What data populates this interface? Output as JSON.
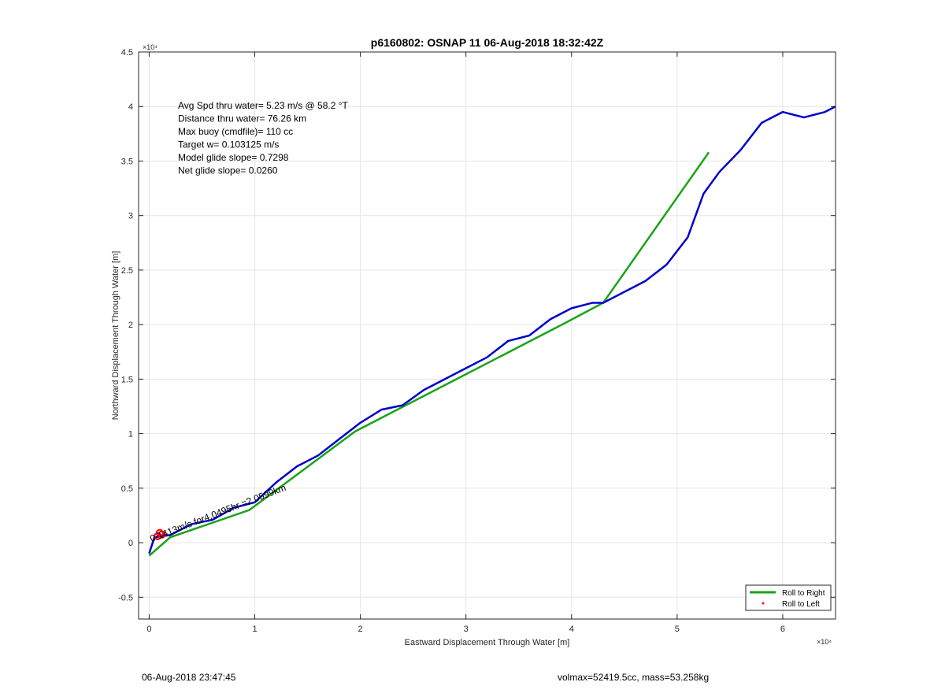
{
  "chart_data": {
    "type": "line",
    "title": "p6160802: OSNAP 11 06-Aug-2018 18:32:42Z",
    "xlabel": "Eastward Displacement Through Water [m]",
    "ylabel": "Northward Displacement Through Water [m]",
    "x_multiplier": "×10⁴",
    "y_multiplier": "×10⁴",
    "xlim": [
      -1000,
      65000
    ],
    "ylim": [
      -7000,
      45000
    ],
    "x_ticks": [
      0,
      10000,
      20000,
      30000,
      40000,
      50000,
      60000
    ],
    "x_tick_labels": [
      "0",
      "1",
      "2",
      "3",
      "4",
      "5",
      "6"
    ],
    "y_ticks": [
      -5000,
      0,
      5000,
      10000,
      15000,
      20000,
      25000,
      30000,
      35000,
      40000,
      45000
    ],
    "y_tick_labels": [
      "-0.5",
      "0",
      "0.5",
      "1",
      "1.5",
      "2",
      "2.5",
      "3",
      "3.5",
      "4",
      "4.5"
    ],
    "grid": true,
    "legend_position": "bottom-right",
    "annotations": [
      "Avg Spd thru water=  5.23 m/s @  58.2 °T",
      "Distance thru water= 76.26 km",
      "Max buoy (cmdfile)= 110 cc",
      "Target w= 0.103125 m/s",
      "Model glide slope= 0.7298",
      "Net glide slope= 0.0260"
    ],
    "current_label": "0.1413m/s for4.0495hr =2.0599km",
    "series": [
      {
        "name": "Roll to Right",
        "color": "#1aa31a",
        "x": [
          0,
          2000,
          9500,
          19500,
          29500,
          39500,
          43000,
          53000
        ],
        "y": [
          -1200,
          500,
          3000,
          10200,
          15200,
          20200,
          22000,
          35800
        ]
      },
      {
        "name": "Roll to Left",
        "color": "#ff0000",
        "x": [
          800,
          1000,
          1200
        ],
        "y": [
          600,
          900,
          750
        ]
      },
      {
        "name": "",
        "color": "#0000cc",
        "x": [
          0,
          500,
          2000,
          4000,
          6000,
          8000,
          10000,
          12000,
          14000,
          16000,
          18000,
          20000,
          22000,
          24000,
          26000,
          28000,
          30000,
          32000,
          34000,
          36000,
          38000,
          40000,
          42000,
          43000,
          45000,
          47000,
          49000,
          51000,
          52500,
          54000,
          56000,
          58000,
          60000,
          62000,
          64000,
          65000
        ],
        "y": [
          -1000,
          500,
          700,
          1700,
          2100,
          3200,
          3700,
          5500,
          7000,
          8000,
          9500,
          11000,
          12200,
          12600,
          14000,
          15000,
          16000,
          17000,
          18500,
          19000,
          20500,
          21500,
          22000,
          22000,
          23000,
          24000,
          25500,
          28000,
          32000,
          34000,
          36000,
          38500,
          39500,
          39000,
          39500,
          40000
        ]
      }
    ]
  },
  "footer": {
    "timestamp": "06-Aug-2018 23:47:45",
    "volume_mass": "volmax=52419.5cc, mass=53.258kg"
  }
}
